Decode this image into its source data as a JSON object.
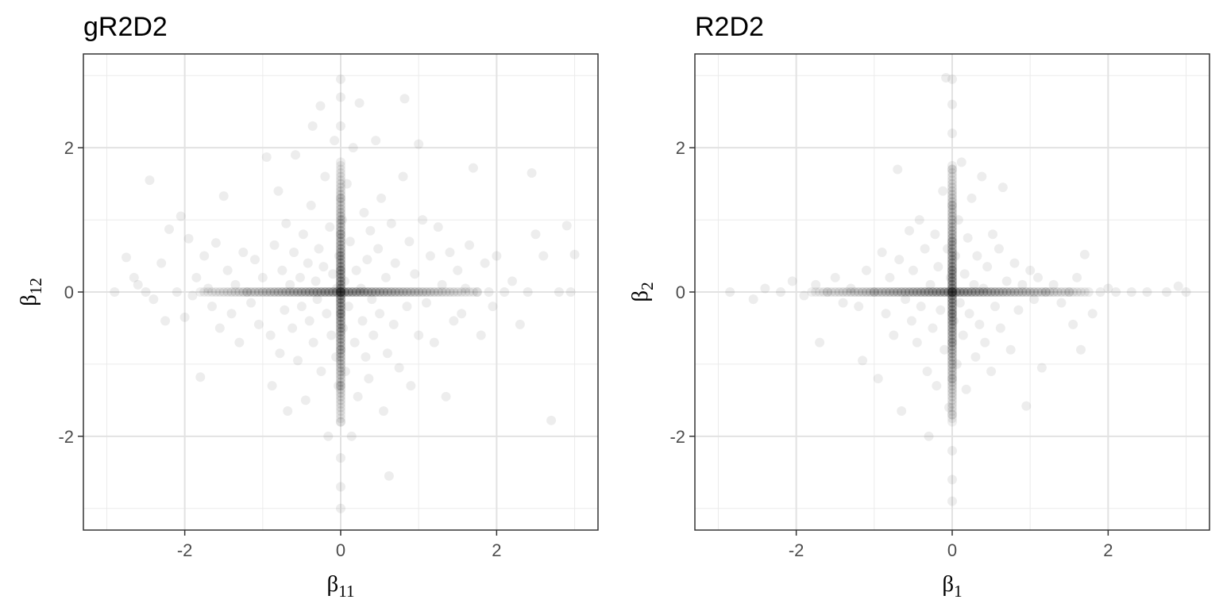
{
  "chart_data": [
    {
      "type": "scatter",
      "title": "gR2D2",
      "xlabel": {
        "symbol": "β",
        "subscript": "11"
      },
      "ylabel": {
        "symbol": "β",
        "subscript": "12"
      },
      "xlim": [
        -3.3,
        3.3
      ],
      "ylim": [
        -3.3,
        3.3
      ],
      "x_ticks": [
        -2,
        0,
        2
      ],
      "y_ticks": [
        -2,
        0,
        2
      ],
      "x_tick_labels": [
        "-2",
        "0",
        "2"
      ],
      "y_tick_labels": [
        "-2",
        "0",
        "2"
      ],
      "grid": true,
      "point_color": "#000000",
      "point_opacity": 0.07,
      "description_of_data": "dense cross-shaped cloud concentrated on both axes, wide spread along each axis",
      "points": [
        [
          -2.9,
          0
        ],
        [
          -2.75,
          0.48
        ],
        [
          -2.65,
          0.2
        ],
        [
          -2.6,
          0.1
        ],
        [
          -2.5,
          0
        ],
        [
          -2.45,
          1.55
        ],
        [
          -2.4,
          -0.1
        ],
        [
          -2.3,
          0.4
        ],
        [
          -2.25,
          -0.4
        ],
        [
          -2.2,
          0.87
        ],
        [
          -2.1,
          0
        ],
        [
          -2.05,
          1.05
        ],
        [
          -2.0,
          -0.35
        ],
        [
          -1.95,
          0.74
        ],
        [
          -1.9,
          -0.05
        ],
        [
          -1.85,
          0.2
        ],
        [
          -1.8,
          -1.18
        ],
        [
          -1.75,
          0.5
        ],
        [
          -1.7,
          0.05
        ],
        [
          -1.65,
          -0.2
        ],
        [
          -1.6,
          0.68
        ],
        [
          -1.55,
          -0.5
        ],
        [
          -1.5,
          1.33
        ],
        [
          -1.45,
          0.3
        ],
        [
          -1.4,
          -0.3
        ],
        [
          -1.35,
          0.1
        ],
        [
          -1.3,
          -0.7
        ],
        [
          -1.25,
          0.55
        ],
        [
          -1.2,
          0
        ],
        [
          -1.15,
          -0.15
        ],
        [
          -1.1,
          0.45
        ],
        [
          -1.05,
          -0.45
        ],
        [
          -1.0,
          0.2
        ],
        [
          -0.95,
          1.87
        ],
        [
          -0.9,
          -0.6
        ],
        [
          -0.88,
          -1.3
        ],
        [
          -0.85,
          0.65
        ],
        [
          -0.8,
          1.4
        ],
        [
          -0.78,
          -0.85
        ],
        [
          -0.75,
          0.3
        ],
        [
          -0.72,
          -0.25
        ],
        [
          -0.7,
          0.95
        ],
        [
          -0.68,
          -1.65
        ],
        [
          -0.65,
          0.1
        ],
        [
          -0.62,
          -0.5
        ],
        [
          -0.6,
          0.55
        ],
        [
          -0.58,
          1.9
        ],
        [
          -0.55,
          -0.95
        ],
        [
          -0.52,
          0.2
        ],
        [
          -0.5,
          -0.2
        ],
        [
          -0.48,
          0.8
        ],
        [
          -0.45,
          -1.5
        ],
        [
          -0.42,
          0.4
        ],
        [
          -0.4,
          -0.4
        ],
        [
          -0.38,
          1.2
        ],
        [
          -0.36,
          2.3
        ],
        [
          -0.35,
          -0.7
        ],
        [
          -0.32,
          0.15
        ],
        [
          -0.3,
          -0.1
        ],
        [
          -0.28,
          0.6
        ],
        [
          -0.26,
          2.58
        ],
        [
          -0.25,
          -1.1
        ],
        [
          -0.22,
          0.35
        ],
        [
          -0.2,
          1.6
        ],
        [
          -0.18,
          -0.3
        ],
        [
          -0.16,
          -2.0
        ],
        [
          -0.14,
          0.9
        ],
        [
          -0.12,
          -0.6
        ],
        [
          -0.1,
          0.25
        ],
        [
          -0.08,
          2.1
        ],
        [
          -0.06,
          -0.9
        ],
        [
          -0.05,
          0.05
        ],
        [
          -0.03,
          -1.3
        ],
        [
          -0.02,
          0.5
        ],
        [
          0,
          0
        ],
        [
          0,
          0.3
        ],
        [
          0,
          -0.3
        ],
        [
          0,
          0.8
        ],
        [
          0,
          -0.8
        ],
        [
          0,
          1.3
        ],
        [
          0,
          -1.3
        ],
        [
          0,
          1.8
        ],
        [
          0,
          -1.8
        ],
        [
          0,
          2.3
        ],
        [
          0,
          -2.3
        ],
        [
          0,
          2.7
        ],
        [
          0,
          -2.7
        ],
        [
          0,
          2.95
        ],
        [
          0,
          -3.0
        ],
        [
          0.02,
          1.0
        ],
        [
          0.03,
          -0.5
        ],
        [
          0.05,
          0.15
        ],
        [
          0.06,
          -1.1
        ],
        [
          0.08,
          1.5
        ],
        [
          0.1,
          -0.2
        ],
        [
          0.12,
          0.7
        ],
        [
          0.14,
          -2.0
        ],
        [
          0.16,
          2.0
        ],
        [
          0.18,
          -0.7
        ],
        [
          0.2,
          0.3
        ],
        [
          0.22,
          -1.45
        ],
        [
          0.24,
          2.62
        ],
        [
          0.26,
          0.05
        ],
        [
          0.28,
          -0.4
        ],
        [
          0.3,
          1.1
        ],
        [
          0.32,
          -0.9
        ],
        [
          0.34,
          0.45
        ],
        [
          0.36,
          -1.2
        ],
        [
          0.38,
          0.85
        ],
        [
          0.4,
          -0.1
        ],
        [
          0.42,
          -0.6
        ],
        [
          0.45,
          2.1
        ],
        [
          0.48,
          0.6
        ],
        [
          0.5,
          -0.3
        ],
        [
          0.52,
          1.3
        ],
        [
          0.55,
          -1.65
        ],
        [
          0.58,
          0.2
        ],
        [
          0.6,
          -0.85
        ],
        [
          0.62,
          -2.55
        ],
        [
          0.65,
          0.95
        ],
        [
          0.68,
          -0.45
        ],
        [
          0.7,
          0.4
        ],
        [
          0.75,
          -1.05
        ],
        [
          0.8,
          1.6
        ],
        [
          0.82,
          2.68
        ],
        [
          0.85,
          -0.2
        ],
        [
          0.88,
          0.7
        ],
        [
          0.9,
          -1.3
        ],
        [
          0.95,
          0.25
        ],
        [
          1.0,
          -0.6
        ],
        [
          1.0,
          2.05
        ],
        [
          1.05,
          1.0
        ],
        [
          1.1,
          -0.15
        ],
        [
          1.15,
          0.5
        ],
        [
          1.2,
          -0.7
        ],
        [
          1.25,
          0.9
        ],
        [
          1.3,
          0.1
        ],
        [
          1.35,
          -1.45
        ],
        [
          1.4,
          0.55
        ],
        [
          1.45,
          -0.4
        ],
        [
          1.5,
          0.3
        ],
        [
          1.55,
          -0.3
        ],
        [
          1.6,
          0.05
        ],
        [
          1.65,
          0.65
        ],
        [
          1.7,
          1.72
        ],
        [
          1.75,
          0
        ],
        [
          1.8,
          -0.6
        ],
        [
          1.85,
          0.4
        ],
        [
          1.9,
          0
        ],
        [
          1.95,
          -0.2
        ],
        [
          2.0,
          0.5
        ],
        [
          2.1,
          0
        ],
        [
          2.2,
          0.15
        ],
        [
          2.3,
          -0.45
        ],
        [
          2.4,
          0
        ],
        [
          2.45,
          1.65
        ],
        [
          2.5,
          0.8
        ],
        [
          2.6,
          0.5
        ],
        [
          2.7,
          -1.78
        ],
        [
          2.8,
          0
        ],
        [
          2.9,
          0.92
        ],
        [
          2.95,
          0
        ],
        [
          3.0,
          0.52
        ]
      ]
    },
    {
      "type": "scatter",
      "title": "R2D2",
      "xlabel": {
        "symbol": "β",
        "subscript": "1"
      },
      "ylabel": {
        "symbol": "β",
        "subscript": "2"
      },
      "xlim": [
        -3.3,
        3.3
      ],
      "ylim": [
        -3.3,
        3.3
      ],
      "x_ticks": [
        -2,
        0,
        2
      ],
      "y_ticks": [
        -2,
        0,
        2
      ],
      "x_tick_labels": [
        "-2",
        "0",
        "2"
      ],
      "y_tick_labels": [
        "-2",
        "0",
        "2"
      ],
      "grid": true,
      "point_color": "#000000",
      "point_opacity": 0.07,
      "description_of_data": "cross-shaped cloud more tightly concentrated near origin than gR2D2",
      "points": [
        [
          -2.85,
          0
        ],
        [
          -2.55,
          -0.1
        ],
        [
          -2.4,
          0.05
        ],
        [
          -2.2,
          0
        ],
        [
          -2.05,
          0.15
        ],
        [
          -1.9,
          -0.05
        ],
        [
          -1.75,
          0.1
        ],
        [
          -1.7,
          -0.7
        ],
        [
          -1.6,
          0
        ],
        [
          -1.5,
          0.2
        ],
        [
          -1.4,
          -0.15
        ],
        [
          -1.3,
          0.05
        ],
        [
          -1.2,
          -0.2
        ],
        [
          -1.15,
          -0.95
        ],
        [
          -1.1,
          0.3
        ],
        [
          -1.0,
          0
        ],
        [
          -0.95,
          -1.2
        ],
        [
          -0.9,
          0.55
        ],
        [
          -0.85,
          -0.3
        ],
        [
          -0.8,
          0.2
        ],
        [
          -0.75,
          -0.6
        ],
        [
          -0.7,
          1.7
        ],
        [
          -0.68,
          0.45
        ],
        [
          -0.65,
          -1.65
        ],
        [
          -0.6,
          -0.1
        ],
        [
          -0.55,
          0.85
        ],
        [
          -0.52,
          -0.4
        ],
        [
          -0.5,
          0.3
        ],
        [
          -0.45,
          -0.7
        ],
        [
          -0.42,
          1.0
        ],
        [
          -0.4,
          -0.2
        ],
        [
          -0.35,
          0.6
        ],
        [
          -0.32,
          -1.1
        ],
        [
          -0.3,
          -2.0
        ],
        [
          -0.28,
          0.1
        ],
        [
          -0.25,
          -0.5
        ],
        [
          -0.22,
          0.8
        ],
        [
          -0.2,
          -1.3
        ],
        [
          -0.18,
          0.35
        ],
        [
          -0.15,
          -0.25
        ],
        [
          -0.12,
          1.4
        ],
        [
          -0.1,
          -0.8
        ],
        [
          -0.08,
          2.97
        ],
        [
          -0.06,
          0.6
        ],
        [
          -0.04,
          -1.6
        ],
        [
          -0.02,
          0.2
        ],
        [
          0,
          0
        ],
        [
          0,
          0.3
        ],
        [
          0,
          -0.3
        ],
        [
          0,
          0.7
        ],
        [
          0,
          -0.7
        ],
        [
          0,
          1.2
        ],
        [
          0,
          -1.2
        ],
        [
          0,
          1.7
        ],
        [
          0,
          -1.7
        ],
        [
          0,
          2.2
        ],
        [
          0,
          -2.2
        ],
        [
          0,
          2.6
        ],
        [
          0,
          -2.6
        ],
        [
          0,
          2.95
        ],
        [
          0,
          -2.9
        ],
        [
          0.02,
          -0.4
        ],
        [
          0.04,
          0.5
        ],
        [
          0.06,
          -1.0
        ],
        [
          0.08,
          1.0
        ],
        [
          0.1,
          -0.15
        ],
        [
          0.12,
          1.8
        ],
        [
          0.14,
          -0.6
        ],
        [
          0.16,
          0.25
        ],
        [
          0.18,
          -1.35
        ],
        [
          0.2,
          0.75
        ],
        [
          0.22,
          -0.3
        ],
        [
          0.25,
          1.3
        ],
        [
          0.28,
          0.1
        ],
        [
          0.3,
          -0.9
        ],
        [
          0.32,
          0.5
        ],
        [
          0.35,
          -0.45
        ],
        [
          0.38,
          1.6
        ],
        [
          0.4,
          0.05
        ],
        [
          0.42,
          -0.7
        ],
        [
          0.45,
          0.35
        ],
        [
          0.5,
          -1.1
        ],
        [
          0.52,
          0.8
        ],
        [
          0.55,
          -0.2
        ],
        [
          0.6,
          0.6
        ],
        [
          0.62,
          -0.5
        ],
        [
          0.65,
          1.45
        ],
        [
          0.7,
          0.15
        ],
        [
          0.75,
          -0.8
        ],
        [
          0.8,
          0.4
        ],
        [
          0.85,
          -0.25
        ],
        [
          0.9,
          0.1
        ],
        [
          0.95,
          -1.58
        ],
        [
          1.0,
          0.3
        ],
        [
          1.05,
          -0.1
        ],
        [
          1.1,
          0.2
        ],
        [
          1.15,
          -1.05
        ],
        [
          1.2,
          0
        ],
        [
          1.3,
          0.1
        ],
        [
          1.4,
          -0.15
        ],
        [
          1.5,
          0
        ],
        [
          1.55,
          -0.45
        ],
        [
          1.6,
          0.2
        ],
        [
          1.65,
          -0.8
        ],
        [
          1.7,
          0.52
        ],
        [
          1.8,
          -0.3
        ],
        [
          1.9,
          0
        ],
        [
          2.0,
          0.05
        ],
        [
          2.1,
          0
        ],
        [
          2.3,
          0
        ],
        [
          2.5,
          0
        ],
        [
          2.75,
          0
        ],
        [
          2.9,
          0.08
        ],
        [
          3.0,
          0
        ]
      ]
    }
  ]
}
